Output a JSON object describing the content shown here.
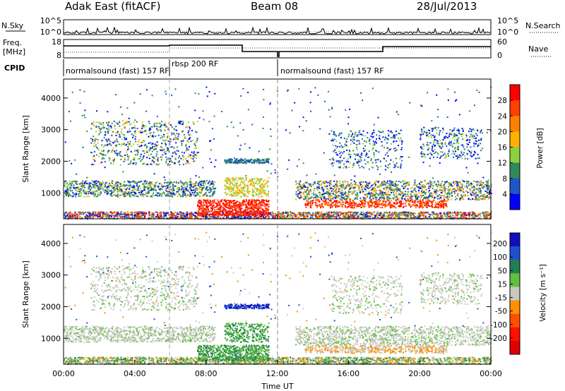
{
  "header": {
    "radar": "Adak East (fitACF)",
    "beam": "Beam 08",
    "date": "28/Jul/2013"
  },
  "noise_panel": {
    "left_label": "N.Sky",
    "right_label": "N.Search",
    "left_ticks": [
      "10^5",
      "10^0"
    ],
    "right_ticks": [
      "10^5",
      "10^0"
    ]
  },
  "freq_panel": {
    "left_label_1": "Freq.",
    "left_label_2": "[MHz]",
    "right_label": "Nave",
    "left_ticks": [
      "18",
      "8"
    ],
    "right_ticks": [
      "60",
      "0"
    ]
  },
  "cpid_panel": {
    "label": "CPID",
    "programs": [
      {
        "name": "normalsound (fast) 157 RF",
        "start_hour": 0,
        "end_hour": 6
      },
      {
        "name": "rbsp 200 RF",
        "start_hour": 6,
        "end_hour": 12
      },
      {
        "name": "normalsound (fast) 157 RF",
        "start_hour": 12,
        "end_hour": 24
      }
    ]
  },
  "chart_data": [
    {
      "type": "heatmap",
      "title": "",
      "xlabel": "Time UT",
      "ylabel": "Slant Range [km]",
      "xlim": [
        0,
        24
      ],
      "ylim": [
        180,
        4600
      ],
      "y_ticks": [
        "1000",
        "2000",
        "3000",
        "4000"
      ],
      "x_ticks": [
        "00:00",
        "04:00",
        "08:00",
        "12:00",
        "16:00",
        "20:00",
        "00:00"
      ],
      "colorbar": {
        "label": "Power [dB]",
        "ticks": [
          "28",
          "24",
          "20",
          "16",
          "12",
          "8",
          "4"
        ],
        "colors": [
          "#ff0000",
          "#ff4000",
          "#ff8000",
          "#ffb000",
          "#8fd040",
          "#2e8b57",
          "#1e56c8",
          "#0000ff"
        ]
      }
    },
    {
      "type": "heatmap",
      "title": "",
      "xlabel": "Time UT",
      "ylabel": "Slant Range [km]",
      "xlim": [
        0,
        24
      ],
      "ylim": [
        180,
        4600
      ],
      "y_ticks": [
        "1000",
        "2000",
        "3000",
        "4000"
      ],
      "x_ticks": [
        "00:00",
        "04:00",
        "08:00",
        "12:00",
        "16:00",
        "20:00",
        "00:00"
      ],
      "colorbar": {
        "label": "Velocity [m s⁻¹]",
        "ticks": [
          "200",
          "100",
          "50",
          "15",
          "-15",
          "-50",
          "-100",
          "-200"
        ],
        "colors": [
          "#1010c0",
          "#2050d0",
          "#208050",
          "#60c040",
          "#c8c8c0",
          "#ff9000",
          "#ff5000",
          "#ff1000",
          "#e00000"
        ]
      }
    }
  ],
  "axes": {
    "x_label": "Time UT",
    "x_ticks": [
      "00:00",
      "04:00",
      "08:00",
      "12:00",
      "16:00",
      "20:00",
      "00:00"
    ]
  }
}
